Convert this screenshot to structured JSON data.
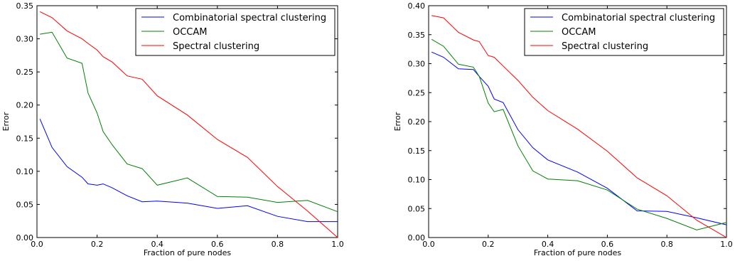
{
  "chart_data": [
    {
      "type": "line",
      "xlabel": "Fraction of pure nodes",
      "ylabel": "Error",
      "xlim": [
        0,
        1
      ],
      "ylim": [
        0,
        0.35
      ],
      "xticks": [
        0,
        0.2,
        0.4,
        0.6,
        0.8,
        1.0
      ],
      "xtick_labels": [
        "0.0",
        "0.2",
        "0.4",
        "0.6",
        "0.8",
        "1.0"
      ],
      "yticks": [
        0,
        0.05,
        0.1,
        0.15,
        0.2,
        0.25,
        0.3,
        0.35
      ],
      "ytick_labels": [
        "0.00",
        "0.05",
        "0.10",
        "0.15",
        "0.20",
        "0.25",
        "0.30",
        "0.35"
      ],
      "grid": false,
      "legend_position": "top-right",
      "series": [
        {
          "name": "Combinatorial spectral clustering",
          "color": "#0000ff",
          "x": [
            0.01,
            0.05,
            0.1,
            0.15,
            0.17,
            0.2,
            0.22,
            0.25,
            0.3,
            0.35,
            0.4,
            0.5,
            0.6,
            0.7,
            0.8,
            0.9,
            1.0
          ],
          "y": [
            0.179,
            0.136,
            0.107,
            0.091,
            0.081,
            0.079,
            0.081,
            0.075,
            0.063,
            0.054,
            0.055,
            0.052,
            0.044,
            0.048,
            0.032,
            0.024,
            0.024
          ]
        },
        {
          "name": "OCCAM",
          "color": "#008000",
          "x": [
            0.01,
            0.05,
            0.1,
            0.15,
            0.17,
            0.2,
            0.22,
            0.25,
            0.3,
            0.35,
            0.4,
            0.5,
            0.6,
            0.7,
            0.8,
            0.9,
            1.0
          ],
          "y": [
            0.307,
            0.31,
            0.271,
            0.263,
            0.218,
            0.188,
            0.16,
            0.14,
            0.111,
            0.104,
            0.079,
            0.09,
            0.062,
            0.061,
            0.053,
            0.056,
            0.039
          ]
        },
        {
          "name": "Spectral clustering",
          "color": "#ff0000",
          "x": [
            0.01,
            0.05,
            0.1,
            0.15,
            0.17,
            0.2,
            0.22,
            0.25,
            0.3,
            0.35,
            0.4,
            0.5,
            0.6,
            0.7,
            0.8,
            0.9,
            1.0
          ],
          "y": [
            0.341,
            0.332,
            0.312,
            0.3,
            0.293,
            0.283,
            0.273,
            0.265,
            0.244,
            0.239,
            0.214,
            0.185,
            0.148,
            0.121,
            0.077,
            0.04,
            0.0
          ]
        }
      ]
    },
    {
      "type": "line",
      "xlabel": "Fraction of pure nodes",
      "ylabel": "Error",
      "xlim": [
        0,
        1
      ],
      "ylim": [
        0,
        0.4
      ],
      "xticks": [
        0,
        0.2,
        0.4,
        0.6,
        0.8,
        1.0
      ],
      "xtick_labels": [
        "0.0",
        "0.2",
        "0.4",
        "0.6",
        "0.8",
        "1.0"
      ],
      "yticks": [
        0,
        0.05,
        0.1,
        0.15,
        0.2,
        0.25,
        0.3,
        0.35,
        0.4
      ],
      "ytick_labels": [
        "0.00",
        "0.05",
        "0.10",
        "0.15",
        "0.20",
        "0.25",
        "0.30",
        "0.35",
        "0.40"
      ],
      "grid": false,
      "legend_position": "top-right",
      "series": [
        {
          "name": "Combinatorial spectral clustering",
          "color": "#0000ff",
          "x": [
            0.01,
            0.05,
            0.1,
            0.15,
            0.17,
            0.2,
            0.22,
            0.25,
            0.3,
            0.35,
            0.4,
            0.5,
            0.6,
            0.7,
            0.8,
            0.9,
            1.0
          ],
          "y": [
            0.32,
            0.311,
            0.291,
            0.29,
            0.278,
            0.261,
            0.239,
            0.233,
            0.186,
            0.155,
            0.134,
            0.113,
            0.085,
            0.046,
            0.045,
            0.034,
            0.022
          ]
        },
        {
          "name": "OCCAM",
          "color": "#008000",
          "x": [
            0.01,
            0.05,
            0.1,
            0.15,
            0.17,
            0.2,
            0.22,
            0.25,
            0.3,
            0.35,
            0.4,
            0.5,
            0.6,
            0.7,
            0.8,
            0.9,
            1.0
          ],
          "y": [
            0.342,
            0.33,
            0.299,
            0.294,
            0.278,
            0.232,
            0.217,
            0.221,
            0.158,
            0.115,
            0.101,
            0.098,
            0.082,
            0.049,
            0.033,
            0.013,
            0.026
          ]
        },
        {
          "name": "Spectral clustering",
          "color": "#ff0000",
          "x": [
            0.01,
            0.05,
            0.1,
            0.15,
            0.17,
            0.2,
            0.22,
            0.25,
            0.3,
            0.35,
            0.4,
            0.5,
            0.6,
            0.7,
            0.8,
            0.9,
            1.0
          ],
          "y": [
            0.383,
            0.379,
            0.354,
            0.341,
            0.338,
            0.314,
            0.311,
            0.296,
            0.271,
            0.242,
            0.219,
            0.187,
            0.149,
            0.103,
            0.072,
            0.03,
            0.0
          ]
        }
      ]
    }
  ]
}
